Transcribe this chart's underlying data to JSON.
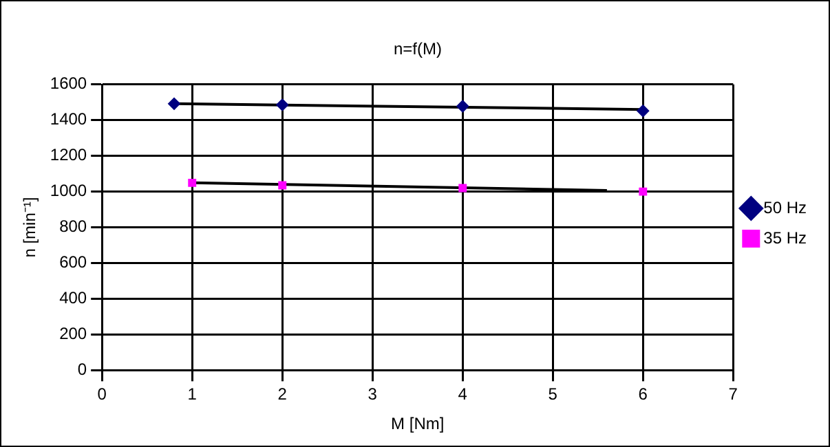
{
  "chart_data": {
    "type": "scatter",
    "title": "n=f(M)",
    "xlabel": "M [Nm]",
    "ylabel": "n [min⁻¹]",
    "xlim": [
      0,
      7
    ],
    "xticks": [
      0,
      1,
      2,
      3,
      4,
      5,
      6,
      7
    ],
    "ylim": [
      0,
      1600
    ],
    "yticks": [
      0,
      200,
      400,
      600,
      800,
      1000,
      1200,
      1400,
      1600
    ],
    "grid": true,
    "legend": "right",
    "series": [
      {
        "name": "50 Hz",
        "color": "#000080",
        "marker": "diamond",
        "x": [
          0.8,
          2,
          4,
          6
        ],
        "values": [
          1492,
          1486,
          1478,
          1452
        ]
      },
      {
        "name": "35 Hz",
        "color": "#ff00ff",
        "marker": "square",
        "x": [
          1,
          2,
          4,
          6
        ],
        "values": [
          1049,
          1035,
          1020,
          1000
        ]
      },
      {
        "type": "line",
        "color": "#000000",
        "marker": "none",
        "x": [
          0.8,
          6
        ],
        "values": [
          1492,
          1460
        ]
      },
      {
        "type": "line",
        "color": "#000000",
        "marker": "none",
        "x": [
          1,
          5.6
        ],
        "values": [
          1050,
          1006
        ]
      }
    ]
  }
}
